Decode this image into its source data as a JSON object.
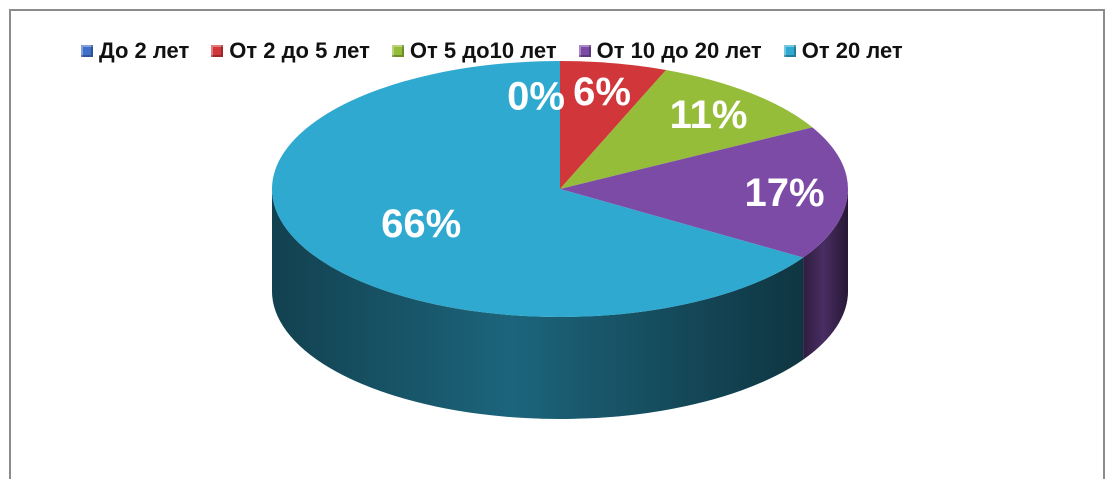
{
  "chart_data": {
    "type": "pie",
    "title": "",
    "three_d": true,
    "legend_placement": "top",
    "slices": [
      {
        "label": "До 2 лет",
        "value": 0,
        "display": "0%",
        "color": "#3F6FC8"
      },
      {
        "label": "От 2 до 5 лет",
        "value": 6,
        "display": "6%",
        "color": "#D0363A"
      },
      {
        "label": "От 5 до10 лет",
        "value": 11,
        "display": "11%",
        "color": "#95BD3A"
      },
      {
        "label": "От 10 до 20 лет",
        "value": 17,
        "display": "17%",
        "color": "#7B4BA6"
      },
      {
        "label": "От 20 лет",
        "value": 66,
        "display": "66%",
        "color": "#2FA9CF"
      }
    ]
  }
}
